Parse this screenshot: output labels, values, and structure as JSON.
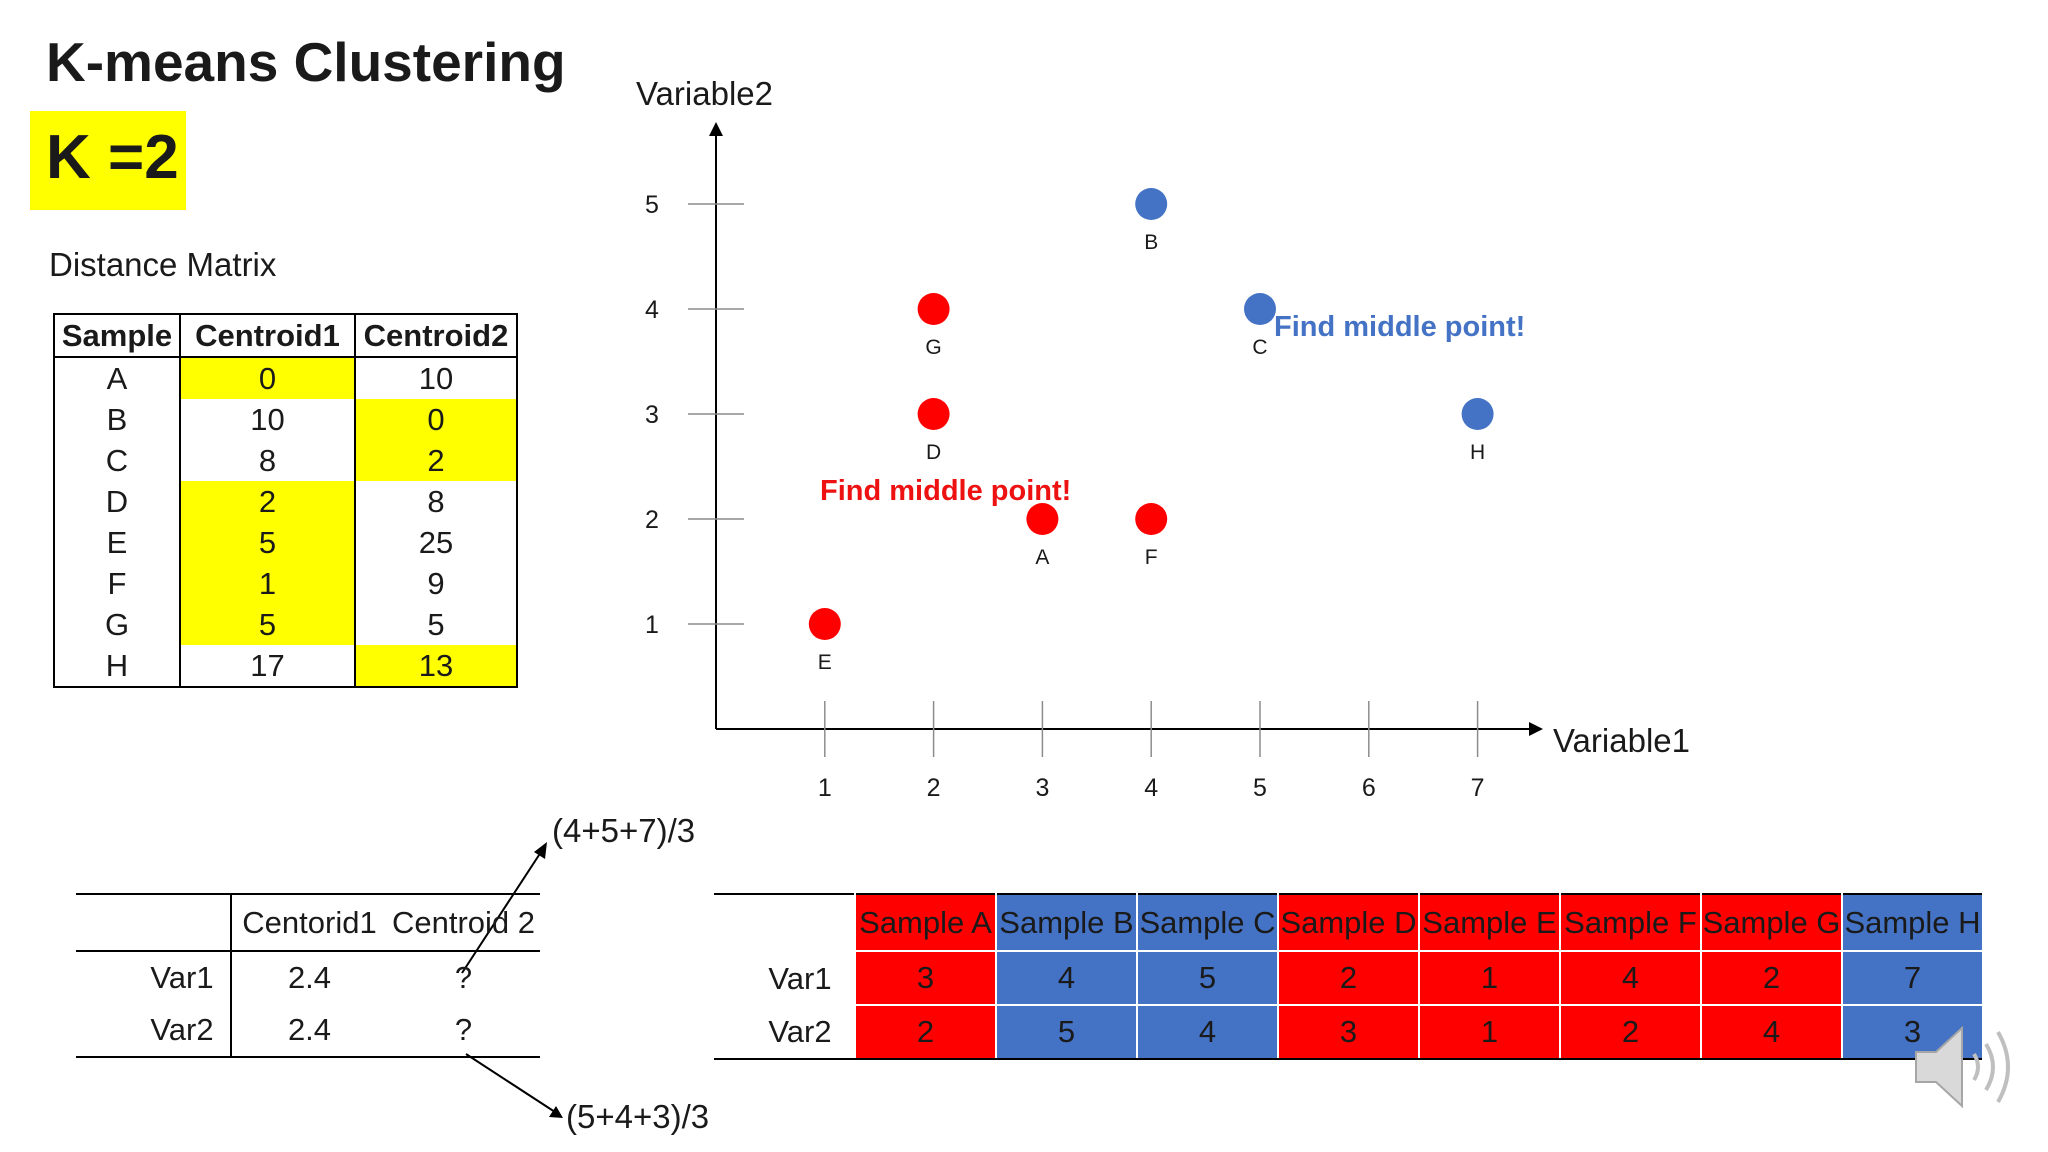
{
  "title": "K-means Clustering",
  "k_label": "K =2",
  "distance_matrix": {
    "title": "Distance Matrix",
    "headers": [
      "Sample",
      "Centroid1",
      "Centroid2"
    ],
    "rows": [
      {
        "sample": "A",
        "c1": "0",
        "c2": "10",
        "assigned": 1
      },
      {
        "sample": "B",
        "c1": "10",
        "c2": "0",
        "assigned": 2
      },
      {
        "sample": "C",
        "c1": "8",
        "c2": "2",
        "assigned": 2
      },
      {
        "sample": "D",
        "c1": "2",
        "c2": "8",
        "assigned": 1
      },
      {
        "sample": "E",
        "c1": "5",
        "c2": "25",
        "assigned": 1
      },
      {
        "sample": "F",
        "c1": "1",
        "c2": "9",
        "assigned": 1
      },
      {
        "sample": "G",
        "c1": "5",
        "c2": "5",
        "assigned": 1
      },
      {
        "sample": "H",
        "c1": "17",
        "c2": "13",
        "assigned": 2
      }
    ]
  },
  "chart_data": {
    "type": "scatter",
    "xlabel": "Variable1",
    "ylabel": "Variable2",
    "xlim": [
      0,
      7.6
    ],
    "ylim": [
      0,
      5.5
    ],
    "x_ticks": [
      "1",
      "2",
      "3",
      "4",
      "5",
      "6",
      "7"
    ],
    "y_ticks": [
      "1",
      "2",
      "3",
      "4",
      "5"
    ],
    "points": [
      {
        "label": "A",
        "x": 3,
        "y": 2,
        "cluster": "red"
      },
      {
        "label": "B",
        "x": 4,
        "y": 5,
        "cluster": "blue"
      },
      {
        "label": "C",
        "x": 5,
        "y": 4,
        "cluster": "blue"
      },
      {
        "label": "D",
        "x": 2,
        "y": 3,
        "cluster": "red"
      },
      {
        "label": "E",
        "x": 1,
        "y": 1,
        "cluster": "red"
      },
      {
        "label": "F",
        "x": 4,
        "y": 2,
        "cluster": "red"
      },
      {
        "label": "G",
        "x": 2,
        "y": 4,
        "cluster": "red"
      },
      {
        "label": "H",
        "x": 7,
        "y": 3,
        "cluster": "blue"
      }
    ],
    "annotations": {
      "red": "Find middle point!",
      "blue": "Find middle point!"
    }
  },
  "colors": {
    "red": "#ff0000",
    "blue": "#4472c4",
    "highlight": "#ffff00",
    "text_red": "#ee1111",
    "text_blue": "#4472c4"
  },
  "centroid_table": {
    "headers": [
      "",
      "Centorid1",
      "Centroid 2"
    ],
    "rows": [
      {
        "label": "Var1",
        "c1": "2.4",
        "c2": "?"
      },
      {
        "label": "Var2",
        "c1": "2.4",
        "c2": "?"
      }
    ],
    "formula_top": "(4+5+7)/3",
    "formula_bottom": "(5+4+3)/3"
  },
  "sample_table": {
    "headers": [
      "Sample A",
      "Sample B",
      "Sample C",
      "Sample D",
      "Sample E",
      "Sample F",
      "Sample G",
      "Sample H"
    ],
    "clusters": [
      "red",
      "blue",
      "blue",
      "red",
      "red",
      "red",
      "red",
      "blue"
    ],
    "rows": [
      {
        "label": "Var1",
        "values": [
          "3",
          "4",
          "5",
          "2",
          "1",
          "4",
          "2",
          "7"
        ]
      },
      {
        "label": "Var2",
        "values": [
          "2",
          "5",
          "4",
          "3",
          "1",
          "2",
          "4",
          "3"
        ]
      }
    ]
  },
  "speaker_icon": "speaker-icon"
}
